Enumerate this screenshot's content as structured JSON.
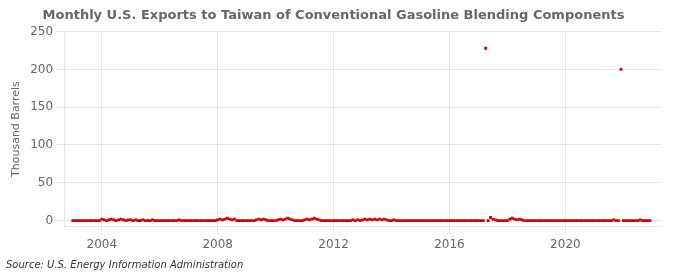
{
  "chart_data": {
    "type": "scatter",
    "title": "Monthly U.S. Exports to Taiwan of Conventional Gasoline Blending Components",
    "ylabel": "Thousand Barrels",
    "annotation": "Source: U.S. Energy Information Administration",
    "color": "#cc0000",
    "marker": "square",
    "grid": true,
    "xlim": [
      2002.7,
      2023.3
    ],
    "xticks": [
      2004,
      2008,
      2012,
      2016,
      2020
    ],
    "ylim": [
      -8,
      250
    ],
    "yticks": [
      0,
      50,
      100,
      150,
      200,
      250
    ],
    "x": [
      2003.0,
      2003.083,
      2003.167,
      2003.25,
      2003.333,
      2003.417,
      2003.5,
      2003.583,
      2003.667,
      2003.75,
      2003.833,
      2003.917,
      2004.0,
      2004.083,
      2004.167,
      2004.25,
      2004.333,
      2004.417,
      2004.5,
      2004.583,
      2004.667,
      2004.75,
      2004.833,
      2004.917,
      2005.0,
      2005.083,
      2005.167,
      2005.25,
      2005.333,
      2005.417,
      2005.5,
      2005.583,
      2005.667,
      2005.75,
      2005.833,
      2005.917,
      2006.0,
      2006.083,
      2006.167,
      2006.25,
      2006.333,
      2006.417,
      2006.5,
      2006.583,
      2006.667,
      2006.75,
      2006.833,
      2006.917,
      2007.0,
      2007.083,
      2007.167,
      2007.25,
      2007.333,
      2007.417,
      2007.5,
      2007.583,
      2007.667,
      2007.75,
      2007.833,
      2007.917,
      2008.0,
      2008.083,
      2008.167,
      2008.25,
      2008.333,
      2008.417,
      2008.5,
      2008.583,
      2008.667,
      2008.75,
      2008.833,
      2008.917,
      2009.0,
      2009.083,
      2009.167,
      2009.25,
      2009.333,
      2009.417,
      2009.5,
      2009.583,
      2009.667,
      2009.75,
      2009.833,
      2009.917,
      2010.0,
      2010.083,
      2010.167,
      2010.25,
      2010.333,
      2010.417,
      2010.5,
      2010.583,
      2010.667,
      2010.75,
      2010.833,
      2010.917,
      2011.0,
      2011.083,
      2011.167,
      2011.25,
      2011.333,
      2011.417,
      2011.5,
      2011.583,
      2011.667,
      2011.75,
      2011.833,
      2011.917,
      2012.0,
      2012.083,
      2012.167,
      2012.25,
      2012.333,
      2012.417,
      2012.5,
      2012.583,
      2012.667,
      2012.75,
      2012.833,
      2012.917,
      2013.0,
      2013.083,
      2013.167,
      2013.25,
      2013.333,
      2013.417,
      2013.5,
      2013.583,
      2013.667,
      2013.75,
      2013.833,
      2013.917,
      2014.0,
      2014.083,
      2014.167,
      2014.25,
      2014.333,
      2014.417,
      2014.5,
      2014.583,
      2014.667,
      2014.75,
      2014.833,
      2014.917,
      2015.0,
      2015.083,
      2015.167,
      2015.25,
      2015.333,
      2015.417,
      2015.5,
      2015.583,
      2015.667,
      2015.75,
      2015.833,
      2015.917,
      2016.0,
      2016.083,
      2016.167,
      2016.25,
      2016.333,
      2016.417,
      2016.5,
      2016.583,
      2016.667,
      2016.75,
      2016.833,
      2016.917,
      2017.0,
      2017.083,
      2017.167,
      2017.25,
      2017.333,
      2017.417,
      2017.5,
      2017.583,
      2017.667,
      2017.75,
      2017.833,
      2017.917,
      2018.0,
      2018.083,
      2018.167,
      2018.25,
      2018.333,
      2018.417,
      2018.5,
      2018.583,
      2018.667,
      2018.75,
      2018.833,
      2018.917,
      2019.0,
      2019.083,
      2019.167,
      2019.25,
      2019.333,
      2019.417,
      2019.5,
      2019.583,
      2019.667,
      2019.75,
      2019.833,
      2019.917,
      2020.0,
      2020.083,
      2020.167,
      2020.25,
      2020.333,
      2020.417,
      2020.5,
      2020.583,
      2020.667,
      2020.75,
      2020.833,
      2020.917,
      2021.0,
      2021.083,
      2021.167,
      2021.25,
      2021.333,
      2021.417,
      2021.5,
      2021.583,
      2021.667,
      2021.75,
      2021.833,
      2021.917,
      2022.0,
      2022.083,
      2022.167,
      2022.25,
      2022.333,
      2022.417,
      2022.5,
      2022.583,
      2022.667,
      2022.75,
      2022.833,
      2022.917
    ],
    "values": [
      0,
      0,
      0,
      0,
      0,
      0,
      0,
      0,
      0,
      0,
      0,
      0,
      2,
      1,
      0,
      1,
      2,
      1,
      0,
      1,
      2,
      1,
      0,
      1,
      1,
      0,
      1,
      0,
      0,
      1,
      0,
      0,
      0,
      1,
      0,
      0,
      0,
      0,
      0,
      0,
      0,
      0,
      0,
      0,
      1,
      0,
      0,
      0,
      0,
      0,
      0,
      0,
      0,
      0,
      0,
      0,
      0,
      0,
      0,
      0,
      1,
      2,
      1,
      2,
      3,
      2,
      1,
      2,
      0,
      0,
      0,
      0,
      0,
      0,
      0,
      0,
      1,
      2,
      1,
      2,
      1,
      0,
      0,
      0,
      0,
      1,
      2,
      1,
      2,
      3,
      2,
      1,
      0,
      0,
      0,
      0,
      1,
      2,
      1,
      2,
      3,
      2,
      1,
      0,
      0,
      0,
      0,
      0,
      0,
      0,
      0,
      0,
      0,
      0,
      0,
      0,
      1,
      0,
      1,
      0,
      1,
      2,
      1,
      2,
      1,
      2,
      1,
      2,
      1,
      2,
      1,
      0,
      0,
      1,
      0,
      0,
      0,
      0,
      0,
      0,
      0,
      0,
      0,
      0,
      0,
      0,
      0,
      0,
      0,
      0,
      0,
      0,
      0,
      0,
      0,
      0,
      0,
      0,
      0,
      0,
      0,
      0,
      0,
      0,
      0,
      0,
      0,
      0,
      0,
      0,
      0,
      228,
      0,
      4,
      2,
      1,
      0,
      0,
      0,
      0,
      0,
      2,
      3,
      2,
      1,
      2,
      1,
      0,
      0,
      0,
      0,
      0,
      0,
      0,
      0,
      0,
      0,
      0,
      0,
      0,
      0,
      0,
      0,
      0,
      0,
      0,
      0,
      0,
      0,
      0,
      0,
      0,
      0,
      0,
      0,
      0,
      0,
      0,
      0,
      0,
      0,
      0,
      0,
      0,
      1,
      0,
      0,
      200,
      0,
      0,
      0,
      0,
      0,
      0,
      0,
      1,
      0,
      0,
      0,
      0
    ]
  }
}
